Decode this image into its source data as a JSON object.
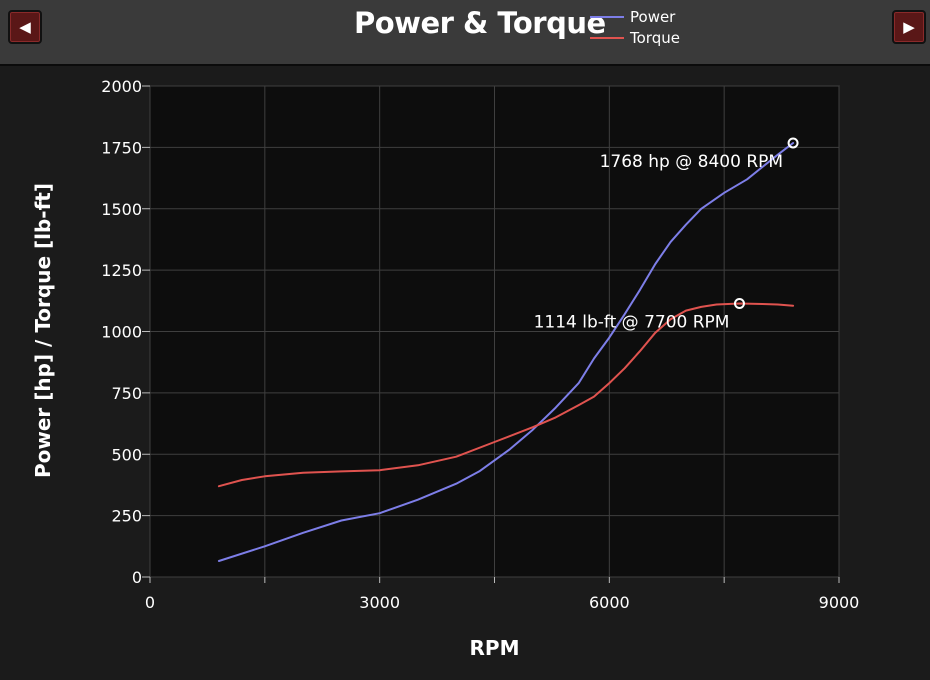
{
  "header": {
    "title": "Power & Torque",
    "prev_icon": "triangle-left-icon",
    "next_icon": "triangle-right-icon",
    "prev_glyph": "◀",
    "next_glyph": "▶"
  },
  "chart_data": {
    "type": "line",
    "title": "Power & Torque",
    "xlabel": "RPM",
    "ylabel": "Power [hp] / Torque [lb-ft]",
    "xlim": [
      0,
      9000
    ],
    "ylim": [
      0,
      2000
    ],
    "x_ticks": [
      0,
      3000,
      6000,
      9000
    ],
    "y_ticks": [
      0,
      250,
      500,
      750,
      1000,
      1250,
      1500,
      1750,
      2000
    ],
    "grid": true,
    "legend": "top-right of title",
    "series": [
      {
        "name": "Power",
        "color": "#7d7ee8",
        "x": [
          900,
          1500,
          2000,
          2500,
          3000,
          3500,
          4000,
          4300,
          4700,
          5000,
          5300,
          5600,
          5800,
          6000,
          6200,
          6400,
          6600,
          6800,
          7000,
          7200,
          7500,
          7800,
          8000,
          8200,
          8400
        ],
        "y": [
          65,
          125,
          180,
          230,
          260,
          315,
          380,
          430,
          520,
          600,
          690,
          790,
          890,
          975,
          1070,
          1170,
          1275,
          1365,
          1435,
          1500,
          1565,
          1620,
          1670,
          1720,
          1768
        ]
      },
      {
        "name": "Torque",
        "color": "#e0534f",
        "x": [
          900,
          1200,
          1500,
          2000,
          2500,
          3000,
          3500,
          4000,
          4500,
          5000,
          5300,
          5600,
          5800,
          6000,
          6200,
          6400,
          6600,
          6800,
          7000,
          7200,
          7400,
          7700,
          8000,
          8200,
          8400
        ],
        "y": [
          370,
          395,
          410,
          425,
          430,
          435,
          455,
          490,
          550,
          610,
          650,
          700,
          735,
          790,
          850,
          920,
          995,
          1050,
          1085,
          1100,
          1110,
          1114,
          1112,
          1110,
          1105
        ]
      }
    ],
    "annotations": [
      {
        "series": "Power",
        "x": 8400,
        "y": 1768,
        "text": "1768 hp @ 8400 RPM"
      },
      {
        "series": "Torque",
        "x": 7700,
        "y": 1114,
        "text": "1114 lb-ft @ 7700 RPM"
      }
    ]
  },
  "colors": {
    "background": "#1b1b1b",
    "plot_background": "#0d0d0d",
    "grid": "#3f3f3f",
    "header": "#3a3a3a",
    "button": "#5a1717"
  }
}
